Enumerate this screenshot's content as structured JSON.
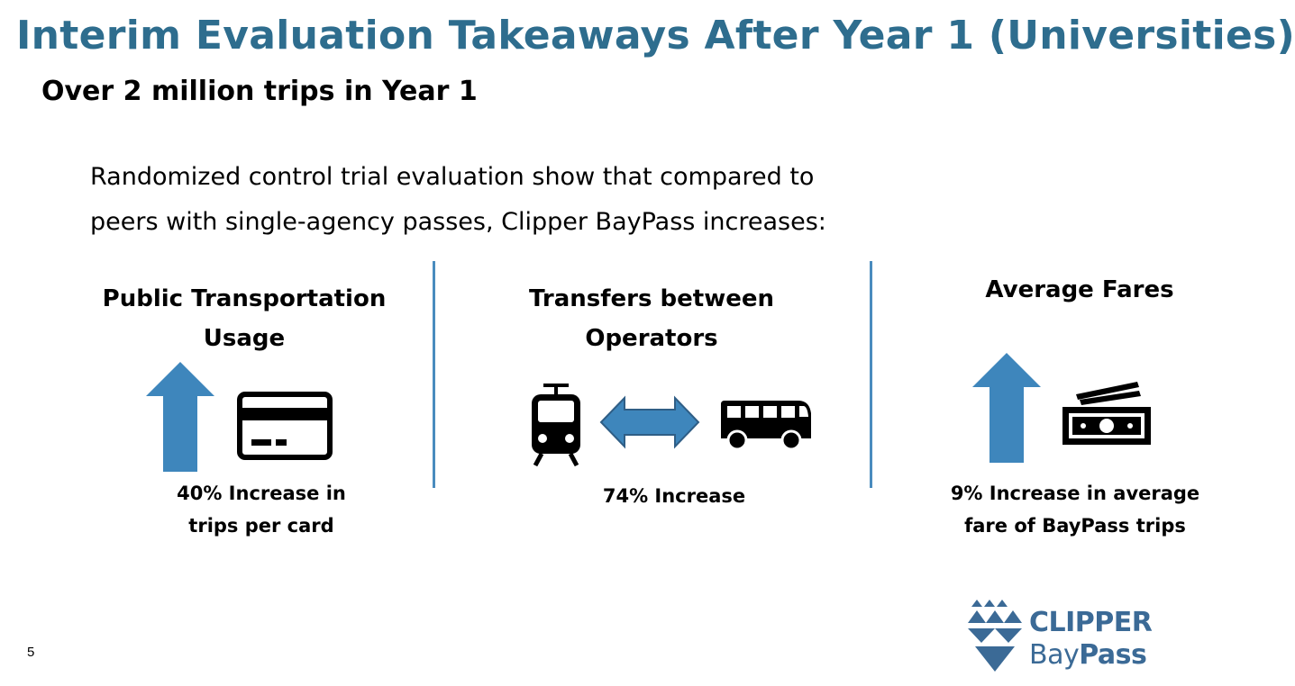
{
  "slide": {
    "title": "Interim Evaluation Takeaways After Year 1 (Universities)",
    "subtitle": "Over 2 million trips in Year 1",
    "intro_line1": "Randomized control trial evaluation show that compared to",
    "intro_line2": "peers with single-agency passes, Clipper BayPass increases:",
    "page_number": "5"
  },
  "panels": [
    {
      "heading_line1": "Public Transportation",
      "heading_line2": "Usage",
      "caption_line1": "40% Increase in",
      "caption_line2": "trips per card",
      "icons": [
        "up-arrow-icon",
        "credit-card-icon"
      ]
    },
    {
      "heading_line1": "Transfers between",
      "heading_line2": "Operators",
      "caption_line1": "74% Increase",
      "icons": [
        "train-icon",
        "double-arrow-icon",
        "bus-icon"
      ]
    },
    {
      "heading_line1": "Average Fares",
      "caption_line1": "9% Increase in average",
      "caption_line2": "fare of BayPass trips",
      "icons": [
        "up-arrow-icon",
        "cash-icon"
      ]
    }
  ],
  "logo": {
    "line1": "CLIPPER",
    "line2_light": "Bay",
    "line2_bold": "Pass"
  },
  "colors": {
    "title": "#2E6D8E",
    "arrow": "#3E86BC",
    "divider": "#4A8CBE",
    "logo": "#3B6A96"
  }
}
